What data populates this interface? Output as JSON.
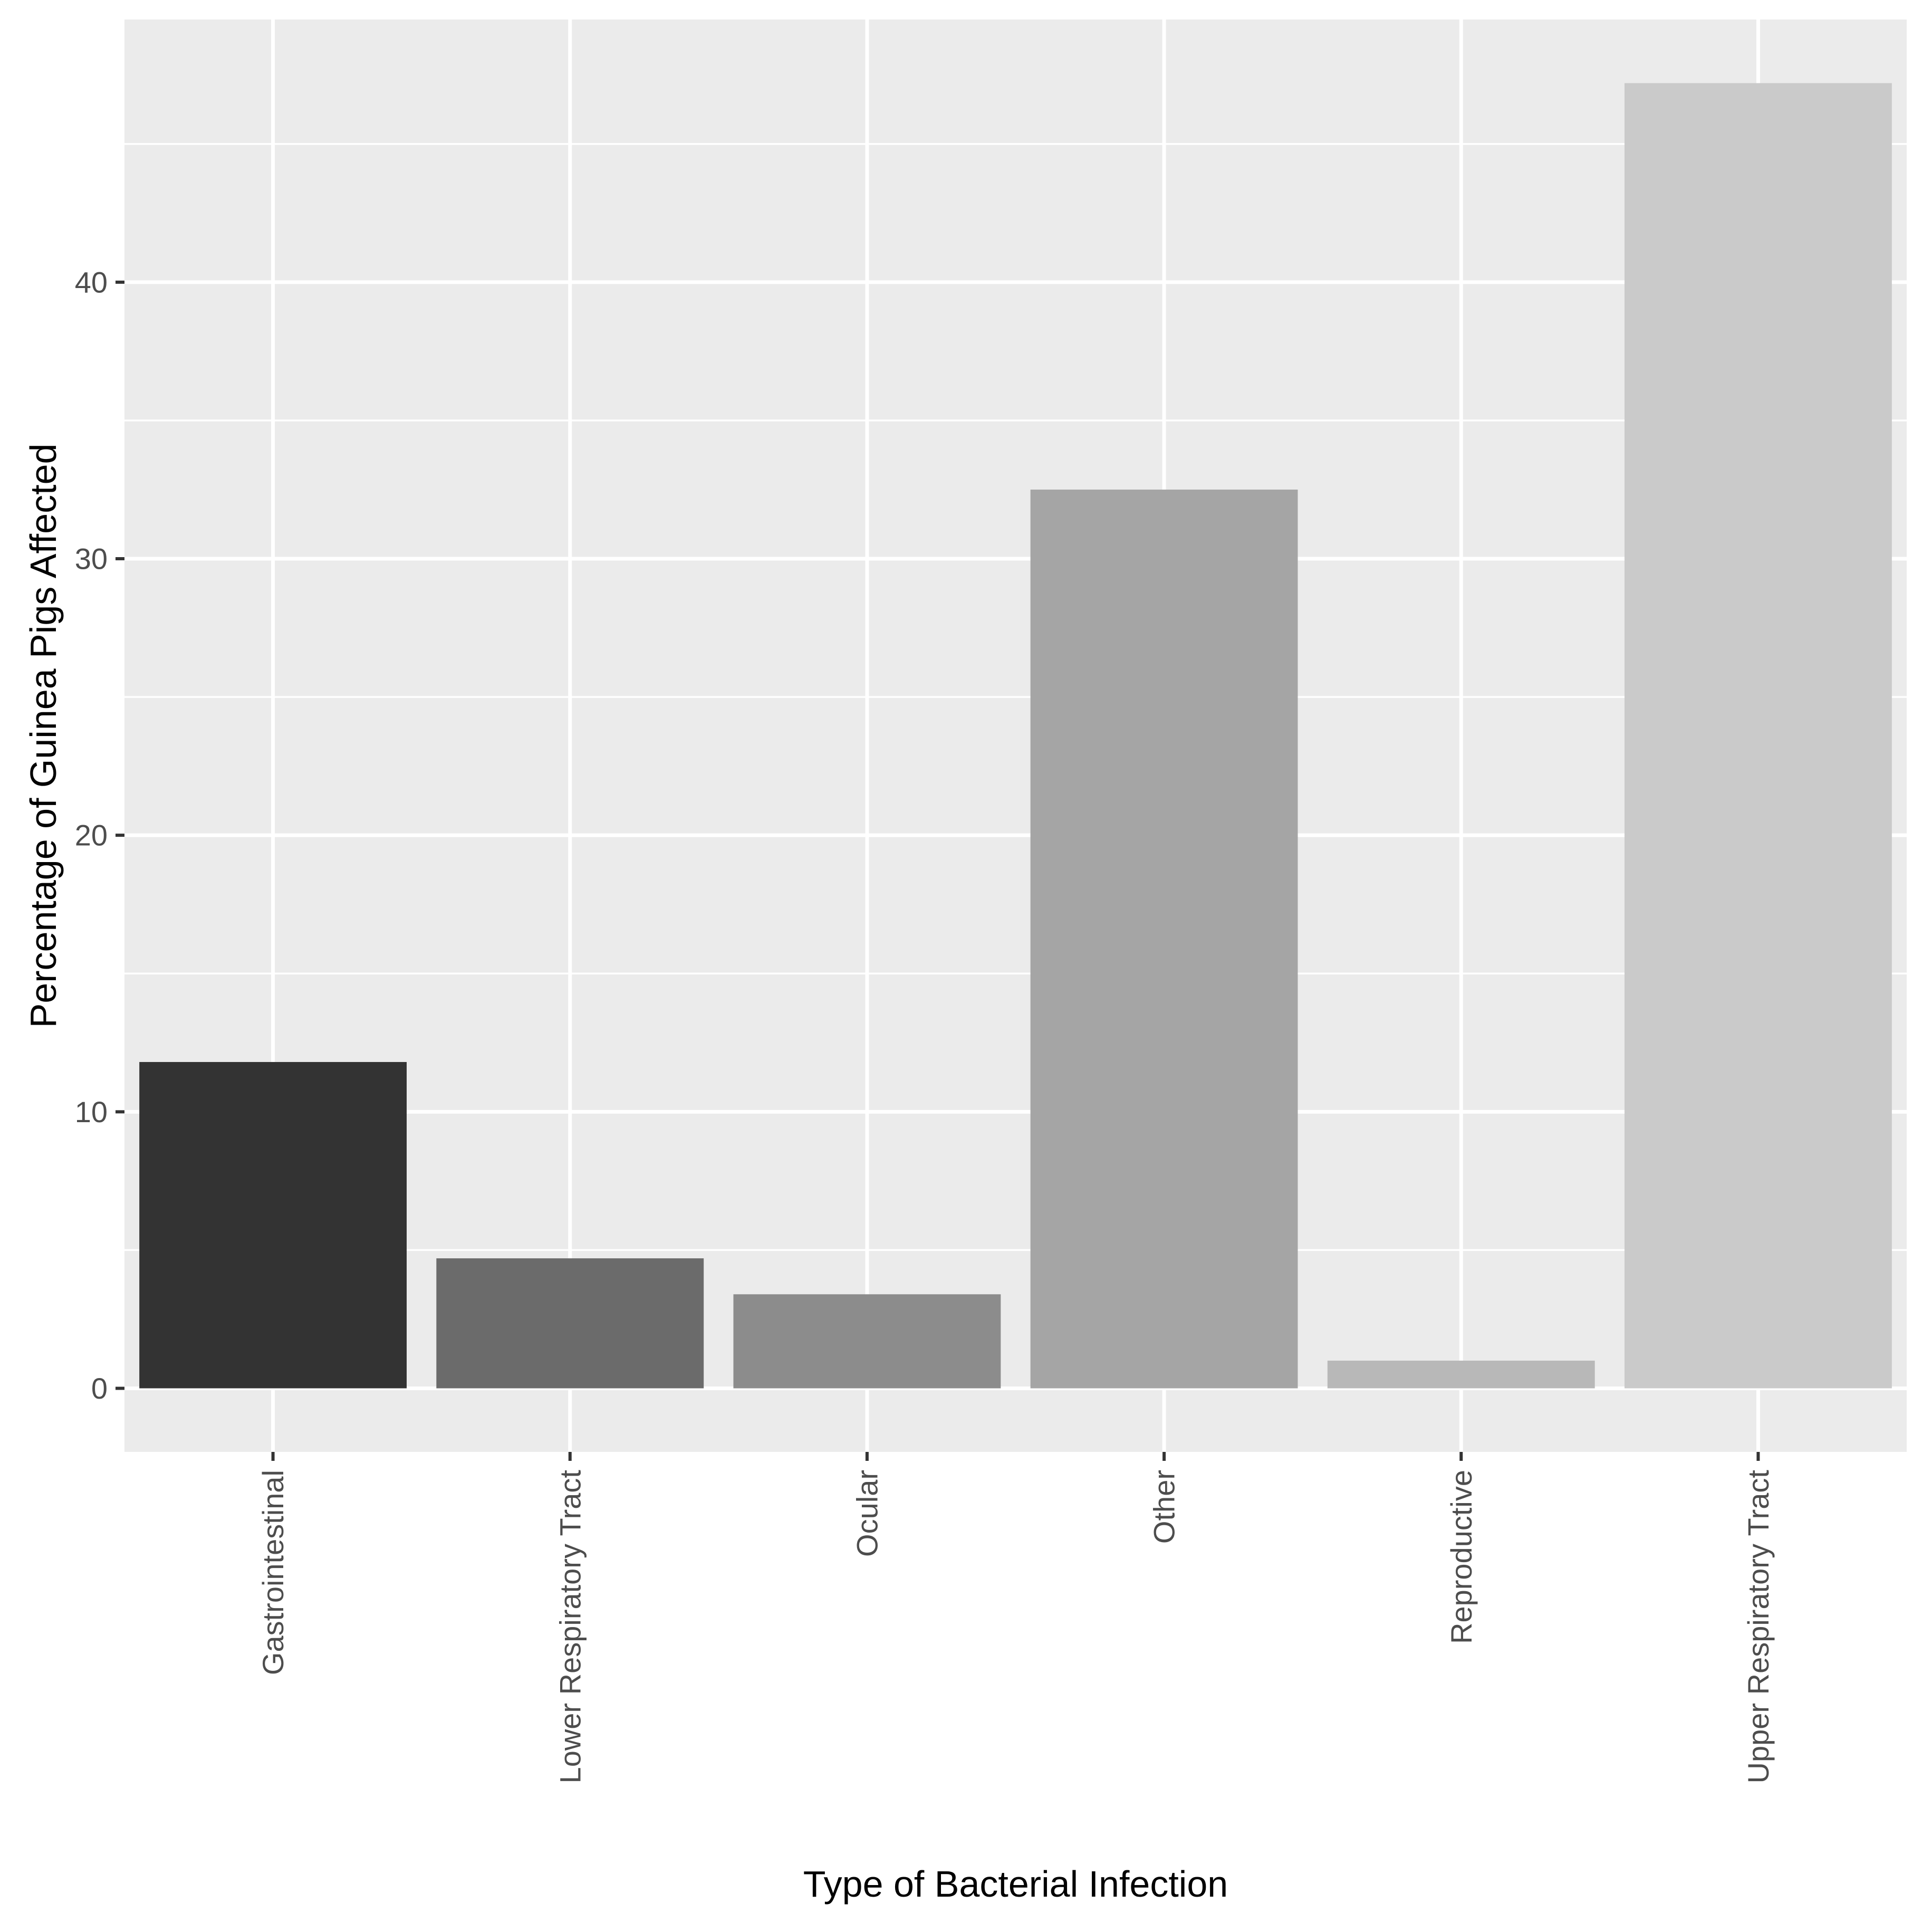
{
  "chart_data": {
    "type": "bar",
    "title": "",
    "xlabel": "Type of Bacterial Infection",
    "ylabel": "Percentage of Guinea Pigs Affected",
    "categories": [
      "Gastrointestinal",
      "Lower Respiratory Tract",
      "Ocular",
      "Other",
      "Reproductive",
      "Upper Respiratory Tract"
    ],
    "values": [
      11.8,
      4.7,
      3.4,
      32.5,
      1.0,
      47.2
    ],
    "bar_colors": [
      "#333333",
      "#6b6b6b",
      "#8c8c8c",
      "#a5a5a5",
      "#b8b8b8",
      "#cacaca"
    ],
    "ylim": [
      -2.3,
      49.5
    ],
    "yticks": [
      0,
      10,
      20,
      30,
      40
    ],
    "ytick_labels": [
      "0",
      "10",
      "20",
      "30",
      "40"
    ],
    "grid": true,
    "panel_color": "#ebebeb",
    "grid_color": "#ffffff",
    "legend": "none"
  }
}
